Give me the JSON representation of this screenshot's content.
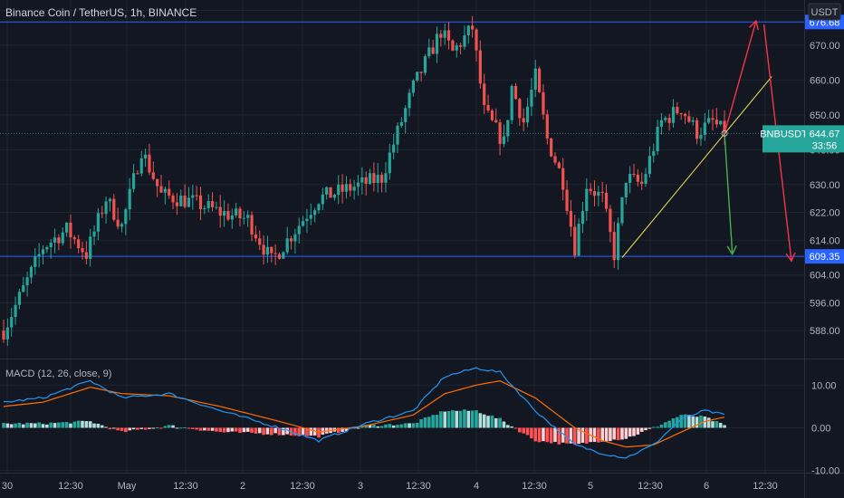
{
  "header": {
    "title": "Binance Coin / TetherUS, 1h, BINANCE",
    "currency_button": "USDT"
  },
  "colors": {
    "background": "#131722",
    "grid": "#1f2430",
    "up": "#26a69a",
    "down": "#ef5350",
    "level_line": "#2962ff",
    "macd_line": "#2196f3",
    "signal_line": "#ff6d00",
    "trendline": "#f5e55b",
    "arrow_red": "#f23645",
    "arrow_green": "#4caf50"
  },
  "chart_data": [
    {
      "type": "candlestick",
      "title": "Binance Coin / TetherUS, 1h, BINANCE",
      "ylabel": "USDT",
      "ylim": [
        580,
        683
      ],
      "x_tick_labels": [
        "30",
        "12:30",
        "May",
        "12:30",
        "2",
        "12:30",
        "3",
        "12:30",
        "4",
        "12:30",
        "5",
        "12:30",
        "6",
        "12:30"
      ],
      "y_tick_labels": [
        "588.00",
        "596.00",
        "604.00",
        "614.00",
        "622.00",
        "630.00",
        "640.00",
        "650.00",
        "660.00",
        "670.00",
        "680.00"
      ],
      "levels": [
        {
          "price": 676.68,
          "label": "676.68"
        },
        {
          "price": 609.35,
          "label": "609.35"
        }
      ],
      "current_price": {
        "symbol": "BNBUSDT",
        "price": "644.67",
        "countdown": "33:56"
      },
      "anchors": [
        {
          "hour": 0,
          "price": 588
        },
        {
          "hour": 10,
          "price": 612
        },
        {
          "hour": 16,
          "price": 617
        },
        {
          "hour": 21,
          "price": 610
        },
        {
          "hour": 26,
          "price": 626
        },
        {
          "hour": 30,
          "price": 618
        },
        {
          "hour": 35,
          "price": 640
        },
        {
          "hour": 40,
          "price": 627
        },
        {
          "hour": 48,
          "price": 625
        },
        {
          "hour": 55,
          "price": 622
        },
        {
          "hour": 62,
          "price": 620
        },
        {
          "hour": 68,
          "price": 608
        },
        {
          "hour": 74,
          "price": 617
        },
        {
          "hour": 80,
          "price": 626
        },
        {
          "hour": 88,
          "price": 629
        },
        {
          "hour": 96,
          "price": 632
        },
        {
          "hour": 104,
          "price": 658
        },
        {
          "hour": 111,
          "price": 674
        },
        {
          "hour": 114,
          "price": 668
        },
        {
          "hour": 119,
          "price": 675
        },
        {
          "hour": 122,
          "price": 651
        },
        {
          "hour": 127,
          "price": 642
        },
        {
          "hour": 129,
          "price": 658
        },
        {
          "hour": 132,
          "price": 648
        },
        {
          "hour": 135,
          "price": 661
        },
        {
          "hour": 138,
          "price": 643
        },
        {
          "hour": 142,
          "price": 631
        },
        {
          "hour": 145,
          "price": 612
        },
        {
          "hour": 148,
          "price": 630
        },
        {
          "hour": 152,
          "price": 626
        },
        {
          "hour": 155,
          "price": 610
        },
        {
          "hour": 158,
          "price": 632
        },
        {
          "hour": 162,
          "price": 630
        },
        {
          "hour": 167,
          "price": 648
        },
        {
          "hour": 172,
          "price": 652
        },
        {
          "hour": 176,
          "price": 645
        },
        {
          "hour": 180,
          "price": 648
        },
        {
          "hour": 183,
          "price": 644.67
        }
      ],
      "drawings": [
        {
          "kind": "trendline",
          "from": {
            "hour": 157,
            "price": 609
          },
          "to": {
            "hour": 195,
            "price": 661
          }
        },
        {
          "kind": "arrow",
          "color": "red",
          "from": {
            "hour": 183,
            "price": 644.67
          },
          "to": {
            "hour": 191,
            "price": 677
          }
        },
        {
          "kind": "arrow",
          "color": "red",
          "from": {
            "hour": 193,
            "price": 676
          },
          "to": {
            "hour": 200,
            "price": 608
          }
        },
        {
          "kind": "arrow",
          "color": "green",
          "from": {
            "hour": 183,
            "price": 644.67
          },
          "to": {
            "hour": 185,
            "price": 610
          }
        }
      ]
    },
    {
      "type": "line",
      "title": "MACD (12, 26, close, 9)",
      "ylim": [
        -10.5,
        16
      ],
      "y_tick_labels": [
        "10.00",
        "0.00",
        "-10.00"
      ],
      "series": [
        {
          "name": "MACD",
          "anchors": [
            {
              "hour": 0,
              "value": 6
            },
            {
              "hour": 10,
              "value": 7
            },
            {
              "hour": 22,
              "value": 11
            },
            {
              "hour": 30,
              "value": 7
            },
            {
              "hour": 42,
              "value": 8
            },
            {
              "hour": 55,
              "value": 4
            },
            {
              "hour": 70,
              "value": 0
            },
            {
              "hour": 80,
              "value": -3
            },
            {
              "hour": 92,
              "value": 1
            },
            {
              "hour": 104,
              "value": 4
            },
            {
              "hour": 112,
              "value": 12
            },
            {
              "hour": 120,
              "value": 14
            },
            {
              "hour": 126,
              "value": 13
            },
            {
              "hour": 135,
              "value": 4
            },
            {
              "hour": 145,
              "value": -4
            },
            {
              "hour": 152,
              "value": -6
            },
            {
              "hour": 158,
              "value": -7
            },
            {
              "hour": 165,
              "value": -4
            },
            {
              "hour": 172,
              "value": 2
            },
            {
              "hour": 178,
              "value": 4
            },
            {
              "hour": 183,
              "value": 3
            }
          ]
        },
        {
          "name": "Signal",
          "anchors": [
            {
              "hour": 0,
              "value": 5
            },
            {
              "hour": 10,
              "value": 6
            },
            {
              "hour": 22,
              "value": 9.5
            },
            {
              "hour": 30,
              "value": 8
            },
            {
              "hour": 42,
              "value": 7.5
            },
            {
              "hour": 55,
              "value": 5
            },
            {
              "hour": 70,
              "value": 1.5
            },
            {
              "hour": 80,
              "value": -1
            },
            {
              "hour": 92,
              "value": 0.5
            },
            {
              "hour": 104,
              "value": 3
            },
            {
              "hour": 112,
              "value": 8
            },
            {
              "hour": 120,
              "value": 10
            },
            {
              "hour": 126,
              "value": 11
            },
            {
              "hour": 135,
              "value": 7
            },
            {
              "hour": 145,
              "value": 0
            },
            {
              "hour": 152,
              "value": -3
            },
            {
              "hour": 158,
              "value": -4.5
            },
            {
              "hour": 165,
              "value": -4
            },
            {
              "hour": 172,
              "value": -1
            },
            {
              "hour": 178,
              "value": 1.5
            },
            {
              "hour": 183,
              "value": 2.5
            }
          ]
        }
      ]
    }
  ]
}
